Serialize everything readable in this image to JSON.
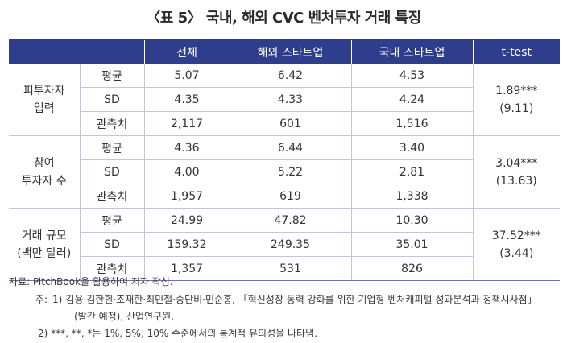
{
  "title": "〈표 5〉 국내, 해외 CVC 벤처투자 거래 특징",
  "columns": [
    "",
    "",
    "전체",
    "해외 스타트업",
    "국내 스타트업",
    "t-test"
  ],
  "groups": [
    {
      "label": [
        "피투자자",
        "업력"
      ],
      "rows": [
        {
          "stat": "평균",
          "total": "5.07",
          "overseas": "6.42",
          "domestic": "4.53"
        },
        {
          "stat": "SD",
          "total": "4.35",
          "overseas": "4.33",
          "domestic": "4.24"
        },
        {
          "stat": "관측치",
          "total": "2,117",
          "overseas": "601",
          "domestic": "1,516"
        }
      ],
      "ttest": [
        "1.89***",
        "(9.11)"
      ]
    },
    {
      "label": [
        "참여",
        "투자자 수"
      ],
      "rows": [
        {
          "stat": "평균",
          "total": "4.36",
          "overseas": "6.44",
          "domestic": "3.40"
        },
        {
          "stat": "SD",
          "total": "4.00",
          "overseas": "5.22",
          "domestic": "2.81"
        },
        {
          "stat": "관측치",
          "total": "1,957",
          "overseas": "619",
          "domestic": "1,338"
        }
      ],
      "ttest": [
        "3.04***",
        "(13.63)"
      ]
    },
    {
      "label": [
        "거래 규모",
        "(백만 달러)"
      ],
      "rows": [
        {
          "stat": "평균",
          "total": "24.99",
          "overseas": "47.82",
          "domestic": "10.30"
        },
        {
          "stat": "SD",
          "total": "159.32",
          "overseas": "249.35",
          "domestic": "35.01"
        },
        {
          "stat": "관측치",
          "total": "1,357",
          "overseas": "531",
          "domestic": "826"
        }
      ],
      "ttest": [
        "37.52***",
        "(3.44)"
      ]
    }
  ],
  "source": "자료: PitchBook을 활용하여 저자 작성.",
  "notes": {
    "label": "주:",
    "n1_num": "1)",
    "n1_line1": "김용·김한흰·조재한·최민철·송단비·민순홍, 「혁신성장 동력 강화를 위한 기업형 벤처캐피털 성과분석과 정책시사점」",
    "n1_line2": "(발간 예정), 산업연구원.",
    "n2": "2) ***, **, *는 1%, 5%, 10% 수준에서의 통계적 유의성을 나타냄."
  }
}
